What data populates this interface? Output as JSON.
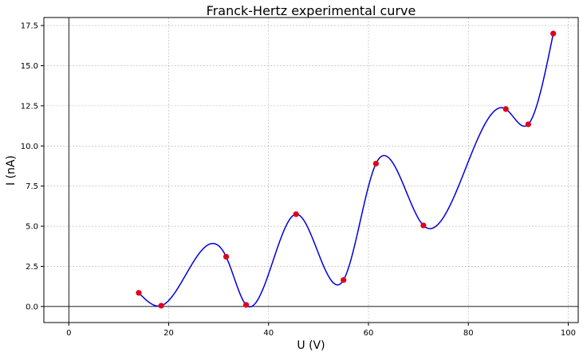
{
  "chart_data": {
    "type": "line",
    "title": "Franck-Hertz experimental curve",
    "xlabel": "U (V)",
    "ylabel": "I (nA)",
    "xlim": [
      -5,
      102
    ],
    "ylim": [
      -1,
      18
    ],
    "x_ticks": [
      0,
      20,
      40,
      60,
      80,
      100
    ],
    "x_tick_labels": [
      "0",
      "20",
      "40",
      "60",
      "80",
      "100"
    ],
    "y_ticks": [
      0,
      2.5,
      5,
      7.5,
      10,
      12.5,
      15,
      17.5
    ],
    "y_tick_labels": [
      "0.0",
      "2.5",
      "5.0",
      "7.5",
      "10.0",
      "12.5",
      "15.0",
      "17.5"
    ],
    "grid": true,
    "zero_lines": true,
    "series": [
      {
        "kind": "points",
        "color": "#e0001b",
        "x": [
          14,
          18.5,
          31.5,
          35.5,
          45.5,
          55,
          61.5,
          71,
          87.5,
          92,
          97
        ],
        "y": [
          0.85,
          0.05,
          3.1,
          0.1,
          5.75,
          1.65,
          8.9,
          5.05,
          12.3,
          11.35,
          17.0
        ]
      },
      {
        "kind": "curve",
        "color": "#0000dd",
        "interpolation": "cubic-spline",
        "x": [
          14,
          18.5,
          31.5,
          35.5,
          45.5,
          55,
          61.5,
          71,
          87.5,
          92,
          97
        ],
        "y": [
          0.85,
          0.05,
          3.1,
          0.1,
          5.75,
          1.65,
          8.9,
          5.05,
          12.3,
          11.35,
          17.0
        ]
      }
    ]
  }
}
